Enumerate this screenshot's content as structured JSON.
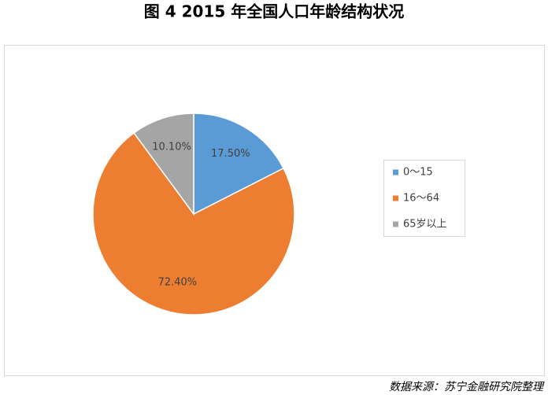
{
  "chart_data": {
    "type": "pie",
    "title": "图 4 2015 年全国人口年龄结构状况",
    "categories": [
      "0～15",
      "16～64",
      "65岁以上"
    ],
    "values": [
      17.5,
      72.4,
      10.1
    ],
    "value_labels": [
      "17.50%",
      "72.40%",
      "10.10%"
    ],
    "colors": [
      "#5b9bd5",
      "#ed7d31",
      "#a5a5a5"
    ],
    "legend": "right",
    "source": "数据来源：苏宁金融研究院整理"
  }
}
